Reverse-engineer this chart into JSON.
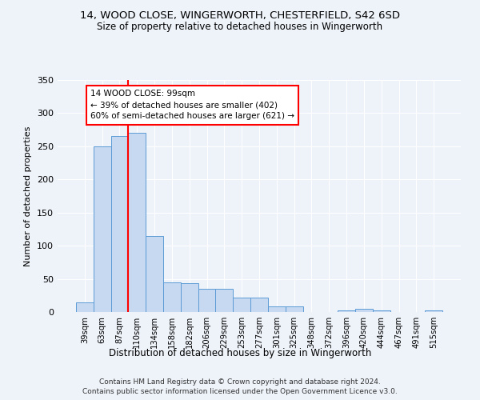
{
  "title1": "14, WOOD CLOSE, WINGERWORTH, CHESTERFIELD, S42 6SD",
  "title2": "Size of property relative to detached houses in Wingerworth",
  "xlabel": "Distribution of detached houses by size in Wingerworth",
  "ylabel": "Number of detached properties",
  "footnote1": "Contains HM Land Registry data © Crown copyright and database right 2024.",
  "footnote2": "Contains public sector information licensed under the Open Government Licence v3.0.",
  "categories": [
    "39sqm",
    "63sqm",
    "87sqm",
    "110sqm",
    "134sqm",
    "158sqm",
    "182sqm",
    "206sqm",
    "229sqm",
    "253sqm",
    "277sqm",
    "301sqm",
    "325sqm",
    "348sqm",
    "372sqm",
    "396sqm",
    "420sqm",
    "444sqm",
    "467sqm",
    "491sqm",
    "515sqm"
  ],
  "values": [
    15,
    250,
    265,
    270,
    115,
    45,
    44,
    35,
    35,
    22,
    22,
    8,
    8,
    0,
    0,
    2,
    5,
    3,
    0,
    0,
    2
  ],
  "bar_color": "#c6d9f0",
  "bar_edge_color": "#5b9bd5",
  "red_line_x": 2.5,
  "annotation_line1": "14 WOOD CLOSE: 99sqm",
  "annotation_line2": "← 39% of detached houses are smaller (402)",
  "annotation_line3": "60% of semi-detached houses are larger (621) →",
  "background_color": "#eef2f9",
  "plot_bg_color": "#eef2f9",
  "grid_color": "#ffffff",
  "ylim": [
    0,
    350
  ],
  "yticks": [
    0,
    50,
    100,
    150,
    200,
    250,
    300,
    350
  ]
}
